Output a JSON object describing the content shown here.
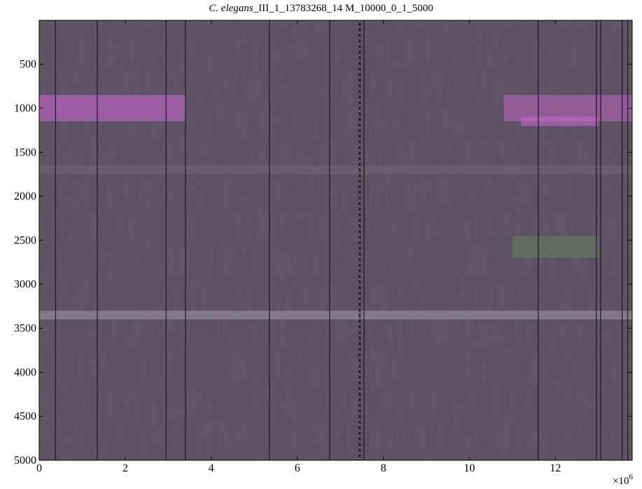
{
  "chart_data": {
    "type": "heatmap",
    "title": {
      "italic": "C. elegans",
      "rest": "_III_1_13783268_14 M_10000_0_1_5000"
    },
    "xlabel": "",
    "ylabel": "",
    "x_multiplier_label": "×10",
    "x_multiplier_exp": "6",
    "xlim": [
      0,
      13.783268
    ],
    "ylim": [
      5000,
      1
    ],
    "x_ticks": [
      0,
      2,
      4,
      6,
      8,
      10,
      12
    ],
    "y_ticks": [
      500,
      1000,
      1500,
      2000,
      2500,
      3000,
      3500,
      4000,
      4500,
      5000
    ],
    "grid": false,
    "base_color": "#4a3d50",
    "vertical_dark_lines_x": [
      0.38,
      1.35,
      2.95,
      3.4,
      5.35,
      6.75,
      7.45,
      7.55,
      11.6,
      12.95,
      13.05,
      13.55,
      13.68
    ],
    "vertical_bright_line_x": 7.45,
    "bands": [
      {
        "y_from": 850,
        "y_to": 1150,
        "x_from": 0,
        "x_to": 3.4,
        "color": "#d35bd8",
        "intensity": 0.55
      },
      {
        "y_from": 850,
        "y_to": 1150,
        "x_from": 10.8,
        "x_to": 13.78,
        "color": "#d35bd8",
        "intensity": 0.45
      },
      {
        "y_from": 1100,
        "y_to": 1200,
        "x_from": 11.2,
        "x_to": 13.0,
        "color": "#e060e6",
        "intensity": 0.5
      },
      {
        "y_from": 3300,
        "y_to": 3400,
        "x_from": 0,
        "x_to": 13.78,
        "color": "#9a9aa8",
        "intensity": 0.55
      },
      {
        "y_from": 2450,
        "y_to": 2700,
        "x_from": 11.0,
        "x_to": 13.0,
        "color": "#5f8a4a",
        "intensity": 0.35
      },
      {
        "y_from": 1650,
        "y_to": 1750,
        "x_from": 0,
        "x_to": 13.78,
        "color": "#6a7a6a",
        "intensity": 0.2
      }
    ]
  }
}
